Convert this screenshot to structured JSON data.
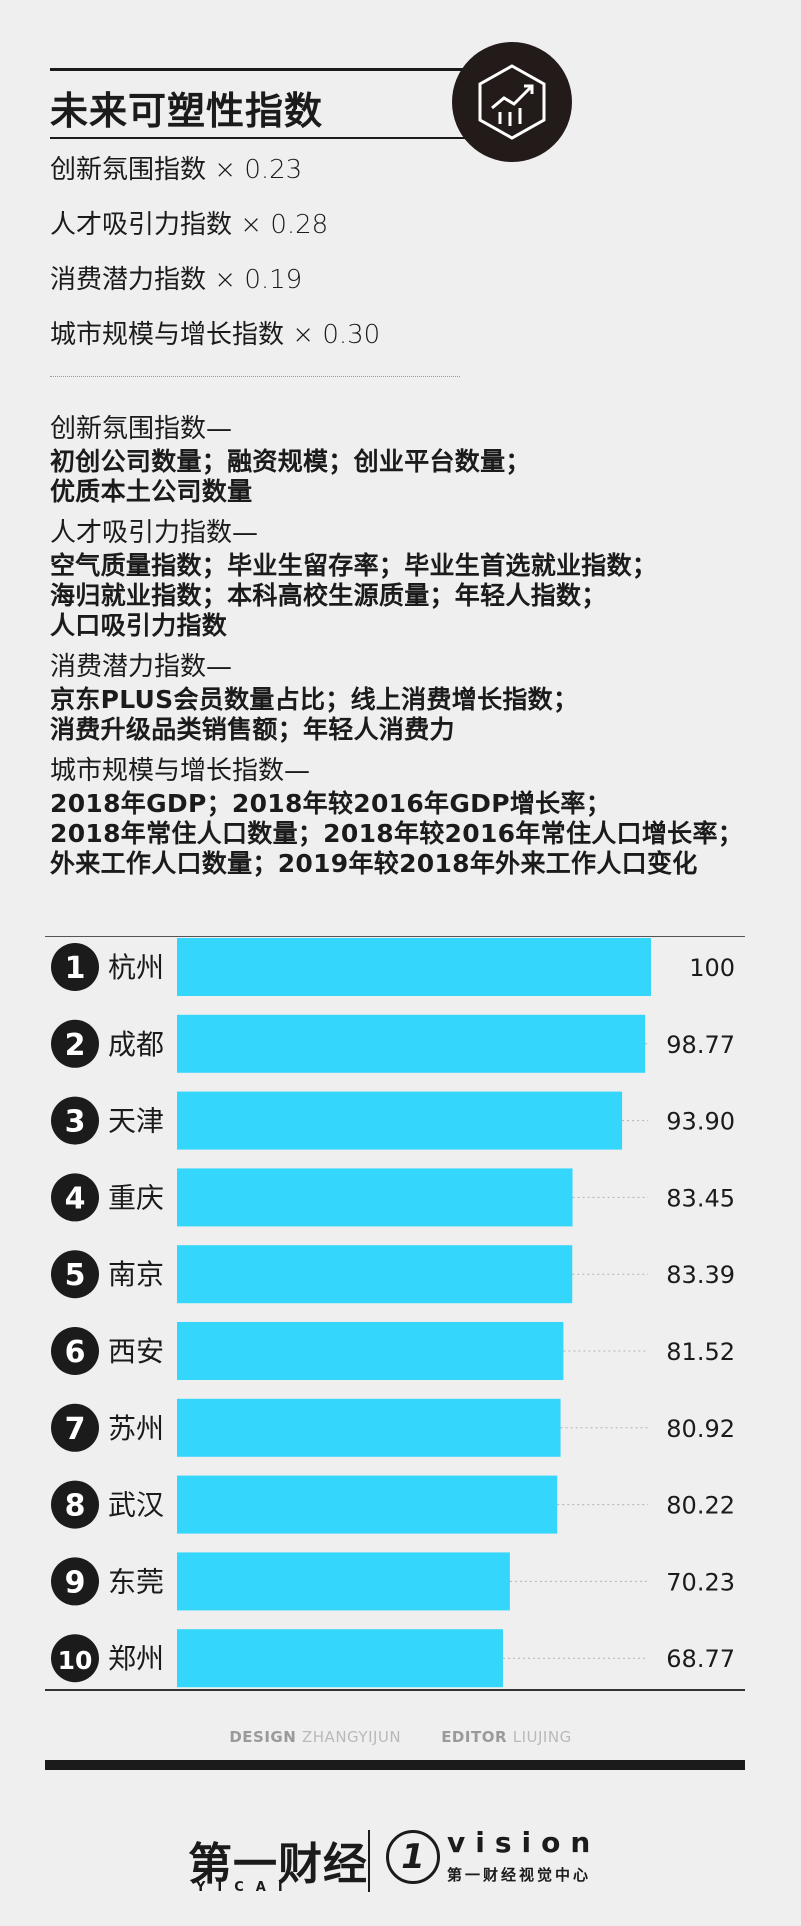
{
  "title": "未来可塑性指数",
  "formula": [
    "创新氛围指数 × 0.23",
    "人才吸引力指数 × 0.28",
    "消费潜力指数 × 0.19",
    "城市规模与增长指数 × 0.30"
  ],
  "definitions": [
    {
      "head": "创新氛围指数—",
      "lines": [
        "初创公司数量；融资规模；创业平台数量；",
        "优质本土公司数量"
      ]
    },
    {
      "head": "人才吸引力指数—",
      "lines": [
        "空气质量指数；毕业生留存率；毕业生首选就业指数；",
        "海归就业指数；本科高校生源质量；年轻人指数；",
        "人口吸引力指数"
      ]
    },
    {
      "head": "消费潜力指数—",
      "lines": [
        "京东PLUS会员数量占比；线上消费增长指数；",
        "消费升级品类销售额；年轻人消费力"
      ]
    },
    {
      "head": "城市规模与增长指数—",
      "lines": [
        "2018年GDP；2018年较2016年GDP增长率；",
        "2018年常住人口数量；2018年较2016年常住人口增长率；",
        "外来工作人口数量；2019年较2018年外来工作人口变化"
      ]
    }
  ],
  "chart_data": {
    "type": "bar",
    "orientation": "horizontal",
    "title": "未来可塑性指数",
    "ranks": [
      "1",
      "2",
      "3",
      "4",
      "5",
      "6",
      "7",
      "8",
      "9",
      "10"
    ],
    "categories": [
      "杭州",
      "成都",
      "天津",
      "重庆",
      "南京",
      "西安",
      "苏州",
      "武汉",
      "东莞",
      "郑州"
    ],
    "values": [
      100,
      98.77,
      93.9,
      83.45,
      83.39,
      81.52,
      80.92,
      80.22,
      70.23,
      68.77
    ],
    "labels": [
      "100",
      "98.77",
      "93.90",
      "83.45",
      "83.39",
      "81.52",
      "80.92",
      "80.22",
      "70.23",
      "68.77"
    ],
    "xlim": [
      0,
      100
    ],
    "bar_color": "#35d6fb"
  },
  "credits": {
    "design_label": "DESIGN",
    "design_name": "ZHANGYIJUN",
    "editor_label": "EDITOR",
    "editor_name": "LIUJING"
  },
  "footer": {
    "brand": "第一财经",
    "brand_sub": "YICAI",
    "vision_mark": "1",
    "vision": "vision",
    "vision_sub": "第一财经视觉中心"
  }
}
